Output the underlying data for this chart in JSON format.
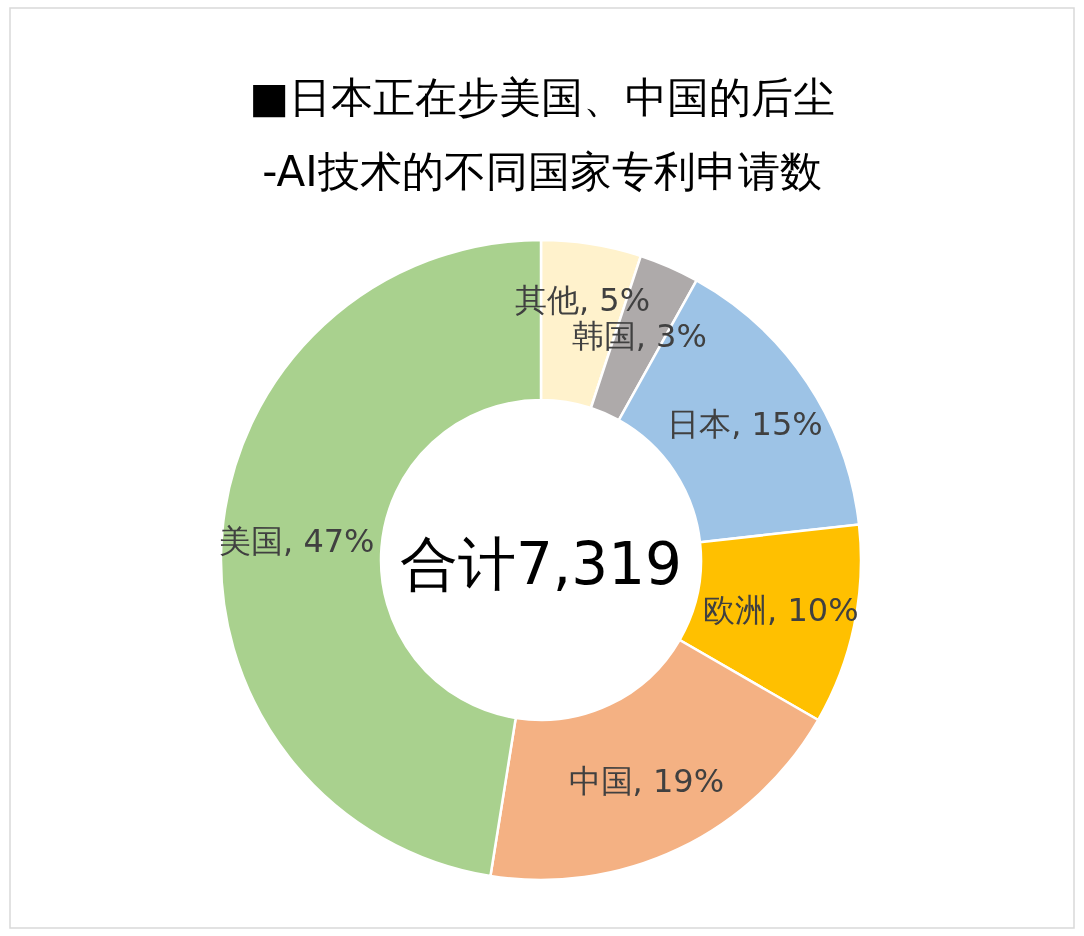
{
  "chart_data": {
    "type": "donut",
    "title": "■日本正在步美国、中国的后尘",
    "subtitle": "-AI技术的不同国家专利申请数",
    "categories": [
      "其他",
      "韩国",
      "日本",
      "欧洲",
      "中国",
      "美国"
    ],
    "values": [
      5,
      3,
      15,
      10,
      19,
      47
    ],
    "value_labels": [
      "5%",
      "3%",
      "15%",
      "10%",
      "19%",
      "47%"
    ],
    "colors": [
      "#fff2cc",
      "#aeaaaa",
      "#9dc3e6",
      "#ffc000",
      "#f4b183",
      "#a9d18e"
    ],
    "annotations": [
      "合计7,319"
    ]
  }
}
